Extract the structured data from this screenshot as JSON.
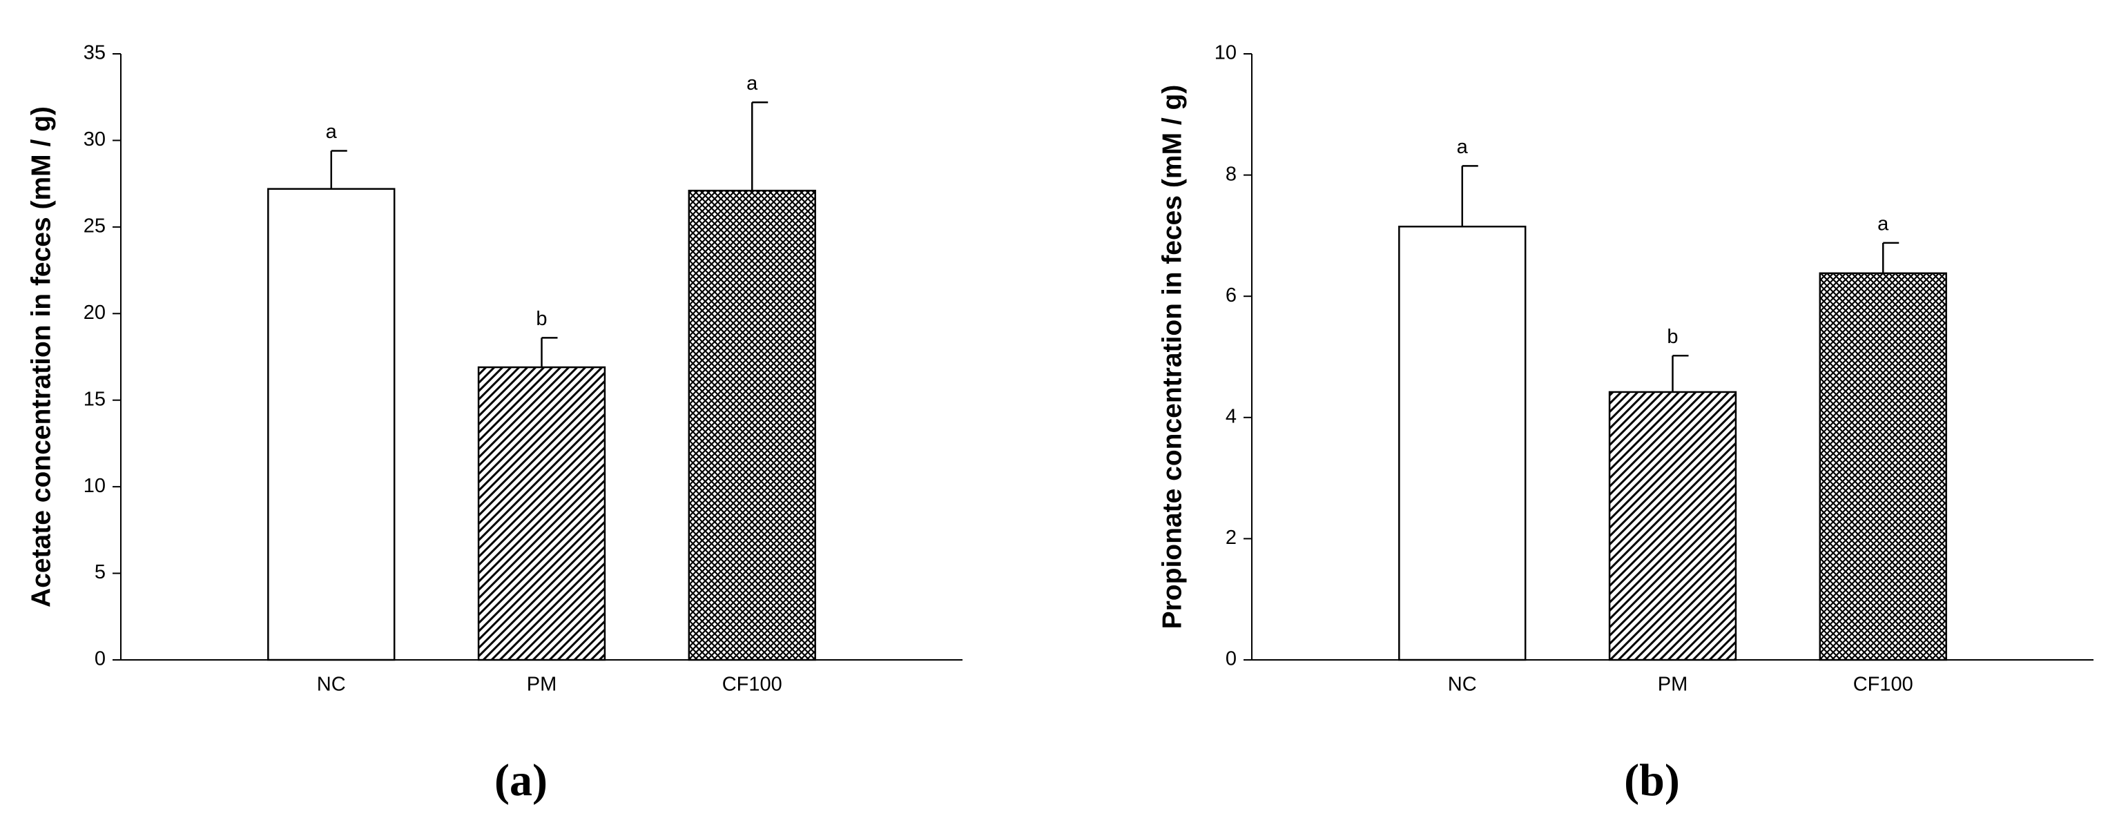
{
  "chart_data": [
    {
      "type": "bar",
      "ylabel": "Acetate concentration in feces (mM / g)",
      "panel_label": "(a)",
      "categories": [
        "NC",
        "PM",
        "CF100"
      ],
      "values": [
        27.2,
        16.9,
        27.1
      ],
      "errors": [
        2.2,
        1.7,
        5.1
      ],
      "value_annotations": [
        "a",
        "b",
        "a"
      ],
      "patterns": [
        "none",
        "diagonal",
        "crosshatch"
      ],
      "ylim": [
        0,
        35
      ],
      "yticks": [
        0,
        5,
        10,
        15,
        20,
        25,
        30,
        35
      ],
      "grid": false
    },
    {
      "type": "bar",
      "ylabel": "Propionate concentration in feces (mM / g)",
      "panel_label": "(b)",
      "categories": [
        "NC",
        "PM",
        "CF100"
      ],
      "values": [
        7.15,
        4.42,
        6.38
      ],
      "errors": [
        1.0,
        0.6,
        0.5
      ],
      "value_annotations": [
        "a",
        "b",
        "a"
      ],
      "patterns": [
        "none",
        "diagonal",
        "crosshatch"
      ],
      "ylim": [
        0,
        10
      ],
      "yticks": [
        0,
        2,
        4,
        6,
        8,
        10
      ],
      "grid": false
    }
  ]
}
